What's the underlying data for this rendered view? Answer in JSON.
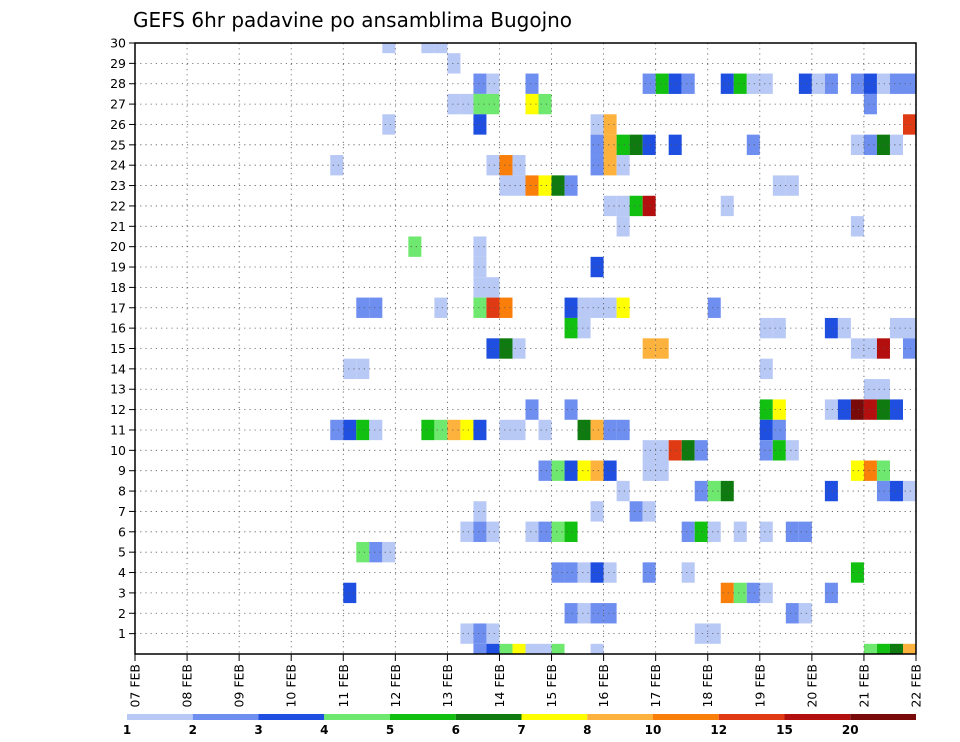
{
  "chart_data": {
    "type": "heatmap",
    "title": "GEFS 6hr padavine po ansamblima Bugojno",
    "xlabel": "",
    "ylabel": "",
    "x_tick_labels": [
      "07 FEB",
      "08 FEB",
      "09 FEB",
      "10 FEB",
      "11 FEB",
      "12 FEB",
      "13 FEB",
      "14 FEB",
      "15 FEB",
      "16 FEB",
      "17 FEB",
      "18 FEB",
      "19 FEB",
      "20 FEB",
      "21 FEB",
      "22 FEB"
    ],
    "y_tick_labels": [
      "1",
      "2",
      "3",
      "4",
      "5",
      "6",
      "7",
      "8",
      "9",
      "10",
      "11",
      "12",
      "13",
      "14",
      "15",
      "16",
      "17",
      "18",
      "19",
      "20",
      "21",
      "22",
      "23",
      "24",
      "25",
      "26",
      "27",
      "28",
      "29",
      "30"
    ],
    "xlim_days": [
      0,
      15
    ],
    "ylim_members": [
      0,
      30
    ],
    "grid": true,
    "colorbar": {
      "placement": "bottom",
      "labels": [
        "1",
        "2",
        "3",
        "4",
        "5",
        "6",
        "7",
        "8",
        "10",
        "12",
        "15",
        "20"
      ],
      "colors": [
        "#b9c9f5",
        "#6f8ff0",
        "#1f4fe0",
        "#6fe86f",
        "#12c012",
        "#0f7a0f",
        "#ffff00",
        "#fcb23c",
        "#fa7f0a",
        "#e03a14",
        "#b40f0f",
        "#780a0a"
      ]
    },
    "cell_width_days": 0.25,
    "cell_height_members": 1,
    "cells": [
      [
        4.75,
        30,
        0
      ],
      [
        5.5,
        30,
        0
      ],
      [
        5.75,
        30,
        0
      ],
      [
        6.0,
        29,
        0
      ],
      [
        6.5,
        28,
        1
      ],
      [
        6.75,
        28,
        0
      ],
      [
        7.5,
        28,
        1
      ],
      [
        9.75,
        28,
        1
      ],
      [
        10.0,
        28,
        4
      ],
      [
        10.25,
        28,
        2
      ],
      [
        10.5,
        28,
        1
      ],
      [
        11.25,
        28,
        2
      ],
      [
        11.5,
        28,
        4
      ],
      [
        11.75,
        28,
        0
      ],
      [
        12.0,
        28,
        0
      ],
      [
        12.75,
        28,
        2
      ],
      [
        13.0,
        28,
        0
      ],
      [
        13.25,
        28,
        1
      ],
      [
        13.75,
        28,
        1
      ],
      [
        14.0,
        28,
        2
      ],
      [
        14.25,
        28,
        0
      ],
      [
        14.5,
        28,
        1
      ],
      [
        14.75,
        28,
        1
      ],
      [
        15.0,
        28,
        2
      ],
      [
        6.0,
        27,
        0
      ],
      [
        6.25,
        27,
        0
      ],
      [
        6.5,
        27,
        3
      ],
      [
        6.75,
        27,
        3
      ],
      [
        7.5,
        27,
        6
      ],
      [
        7.75,
        27,
        3
      ],
      [
        14.0,
        27,
        1
      ],
      [
        4.75,
        26,
        0
      ],
      [
        6.5,
        26,
        2
      ],
      [
        8.75,
        26,
        0
      ],
      [
        9.0,
        26,
        7
      ],
      [
        14.75,
        26,
        9
      ],
      [
        15.0,
        26,
        6
      ],
      [
        8.75,
        25,
        1
      ],
      [
        9.0,
        25,
        7
      ],
      [
        9.25,
        25,
        4
      ],
      [
        9.5,
        25,
        5
      ],
      [
        9.75,
        25,
        2
      ],
      [
        10.25,
        25,
        2
      ],
      [
        11.75,
        25,
        1
      ],
      [
        13.75,
        25,
        0
      ],
      [
        14.0,
        25,
        1
      ],
      [
        14.25,
        25,
        5
      ],
      [
        14.5,
        25,
        0
      ],
      [
        3.75,
        24,
        0
      ],
      [
        6.75,
        24,
        0
      ],
      [
        7.0,
        24,
        8
      ],
      [
        7.25,
        24,
        0
      ],
      [
        8.75,
        24,
        1
      ],
      [
        9.0,
        24,
        7
      ],
      [
        9.25,
        24,
        0
      ],
      [
        7.0,
        23,
        0
      ],
      [
        7.25,
        23,
        0
      ],
      [
        7.5,
        23,
        8
      ],
      [
        7.75,
        23,
        6
      ],
      [
        8.0,
        23,
        5
      ],
      [
        8.25,
        23,
        1
      ],
      [
        12.25,
        23,
        0
      ],
      [
        12.5,
        23,
        0
      ],
      [
        9.0,
        22,
        0
      ],
      [
        9.25,
        22,
        0
      ],
      [
        9.5,
        22,
        4
      ],
      [
        9.75,
        22,
        10
      ],
      [
        11.25,
        22,
        0
      ],
      [
        9.25,
        21,
        0
      ],
      [
        13.75,
        21,
        0
      ],
      [
        5.25,
        20,
        3
      ],
      [
        6.5,
        20,
        0
      ],
      [
        15.0,
        20,
        6
      ],
      [
        6.5,
        19,
        0
      ],
      [
        8.75,
        19,
        2
      ],
      [
        6.5,
        18,
        0
      ],
      [
        6.75,
        18,
        0
      ],
      [
        4.25,
        17,
        1
      ],
      [
        4.5,
        17,
        1
      ],
      [
        5.75,
        17,
        0
      ],
      [
        6.5,
        17,
        3
      ],
      [
        6.75,
        17,
        9
      ],
      [
        7.0,
        17,
        8
      ],
      [
        8.25,
        17,
        2
      ],
      [
        8.5,
        17,
        0
      ],
      [
        8.75,
        17,
        0
      ],
      [
        9.0,
        17,
        0
      ],
      [
        9.25,
        17,
        6
      ],
      [
        11.0,
        17,
        1
      ],
      [
        8.25,
        16,
        4
      ],
      [
        8.5,
        16,
        0
      ],
      [
        12.0,
        16,
        0
      ],
      [
        12.25,
        16,
        0
      ],
      [
        13.25,
        16,
        2
      ],
      [
        13.5,
        16,
        0
      ],
      [
        14.5,
        16,
        0
      ],
      [
        14.75,
        16,
        0
      ],
      [
        6.75,
        15,
        2
      ],
      [
        7.0,
        15,
        5
      ],
      [
        7.25,
        15,
        0
      ],
      [
        9.75,
        15,
        7
      ],
      [
        10.0,
        15,
        7
      ],
      [
        13.75,
        15,
        0
      ],
      [
        14.0,
        15,
        0
      ],
      [
        14.25,
        15,
        10
      ],
      [
        14.75,
        15,
        1
      ],
      [
        15.0,
        15,
        5
      ],
      [
        4.0,
        14,
        0
      ],
      [
        4.25,
        14,
        0
      ],
      [
        12.0,
        14,
        0
      ],
      [
        14.0,
        13,
        0
      ],
      [
        14.25,
        13,
        0
      ],
      [
        7.5,
        12,
        1
      ],
      [
        8.25,
        12,
        1
      ],
      [
        12.0,
        12,
        4
      ],
      [
        12.25,
        12,
        6
      ],
      [
        13.25,
        12,
        0
      ],
      [
        13.5,
        12,
        2
      ],
      [
        13.75,
        12,
        11
      ],
      [
        14.0,
        12,
        10
      ],
      [
        14.25,
        12,
        5
      ],
      [
        14.5,
        12,
        2
      ],
      [
        15.0,
        12,
        0
      ],
      [
        3.75,
        11,
        1
      ],
      [
        4.0,
        11,
        2
      ],
      [
        4.25,
        11,
        4
      ],
      [
        4.5,
        11,
        0
      ],
      [
        5.5,
        11,
        4
      ],
      [
        5.75,
        11,
        3
      ],
      [
        6.0,
        11,
        7
      ],
      [
        6.25,
        11,
        6
      ],
      [
        6.5,
        11,
        2
      ],
      [
        7.0,
        11,
        0
      ],
      [
        7.25,
        11,
        0
      ],
      [
        7.75,
        11,
        0
      ],
      [
        8.5,
        11,
        5
      ],
      [
        8.75,
        11,
        7
      ],
      [
        9.0,
        11,
        1
      ],
      [
        9.25,
        11,
        1
      ],
      [
        12.0,
        11,
        2
      ],
      [
        12.25,
        11,
        1
      ],
      [
        9.75,
        10,
        0
      ],
      [
        10.0,
        10,
        0
      ],
      [
        10.25,
        10,
        9
      ],
      [
        10.5,
        10,
        5
      ],
      [
        10.75,
        10,
        1
      ],
      [
        12.0,
        10,
        1
      ],
      [
        12.25,
        10,
        4
      ],
      [
        12.5,
        10,
        0
      ],
      [
        7.75,
        9,
        1
      ],
      [
        8.0,
        9,
        3
      ],
      [
        8.25,
        9,
        2
      ],
      [
        8.5,
        9,
        6
      ],
      [
        8.75,
        9,
        7
      ],
      [
        9.0,
        9,
        2
      ],
      [
        9.75,
        9,
        0
      ],
      [
        10.0,
        9,
        0
      ],
      [
        13.75,
        9,
        6
      ],
      [
        14.0,
        9,
        8
      ],
      [
        14.25,
        9,
        3
      ],
      [
        9.25,
        8,
        0
      ],
      [
        10.75,
        8,
        1
      ],
      [
        11.0,
        8,
        3
      ],
      [
        11.25,
        8,
        5
      ],
      [
        13.25,
        8,
        2
      ],
      [
        14.25,
        8,
        1
      ],
      [
        14.5,
        8,
        2
      ],
      [
        14.75,
        8,
        0
      ],
      [
        6.5,
        7,
        0
      ],
      [
        8.75,
        7,
        0
      ],
      [
        9.5,
        7,
        1
      ],
      [
        9.75,
        7,
        0
      ],
      [
        6.25,
        6,
        0
      ],
      [
        6.5,
        6,
        1
      ],
      [
        6.75,
        6,
        0
      ],
      [
        7.5,
        6,
        0
      ],
      [
        7.75,
        6,
        1
      ],
      [
        8.0,
        6,
        3
      ],
      [
        8.25,
        6,
        4
      ],
      [
        10.5,
        6,
        1
      ],
      [
        10.75,
        6,
        4
      ],
      [
        11.0,
        6,
        0
      ],
      [
        11.5,
        6,
        0
      ],
      [
        12.0,
        6,
        0
      ],
      [
        12.5,
        6,
        1
      ],
      [
        12.75,
        6,
        1
      ],
      [
        4.25,
        5,
        3
      ],
      [
        4.5,
        5,
        1
      ],
      [
        4.75,
        5,
        0
      ],
      [
        8.0,
        4,
        1
      ],
      [
        8.25,
        4,
        1
      ],
      [
        8.5,
        4,
        0
      ],
      [
        8.75,
        4,
        2
      ],
      [
        9.0,
        4,
        0
      ],
      [
        9.75,
        4,
        1
      ],
      [
        10.5,
        4,
        0
      ],
      [
        13.75,
        4,
        4
      ],
      [
        4.0,
        3,
        2
      ],
      [
        11.25,
        3,
        8
      ],
      [
        11.5,
        3,
        3
      ],
      [
        11.75,
        3,
        1
      ],
      [
        12.0,
        3,
        0
      ],
      [
        13.25,
        3,
        1
      ],
      [
        8.25,
        2,
        1
      ],
      [
        8.5,
        2,
        0
      ],
      [
        8.75,
        2,
        1
      ],
      [
        9.0,
        2,
        1
      ],
      [
        12.5,
        2,
        1
      ],
      [
        12.75,
        2,
        0
      ],
      [
        6.25,
        1,
        0
      ],
      [
        6.5,
        1,
        1
      ],
      [
        6.75,
        1,
        0
      ],
      [
        10.75,
        1,
        0
      ],
      [
        11.0,
        1,
        0
      ],
      [
        6.5,
        0,
        1
      ],
      [
        6.75,
        0,
        2
      ],
      [
        7.0,
        0,
        3
      ],
      [
        7.25,
        0,
        6
      ],
      [
        7.5,
        0,
        0
      ],
      [
        7.75,
        0,
        0
      ],
      [
        8.0,
        0,
        3
      ],
      [
        8.75,
        0,
        0
      ],
      [
        14.0,
        0,
        3
      ],
      [
        14.25,
        0,
        4
      ],
      [
        14.5,
        0,
        5
      ],
      [
        14.75,
        0,
        7
      ],
      [
        15.0,
        0,
        5
      ]
    ]
  }
}
